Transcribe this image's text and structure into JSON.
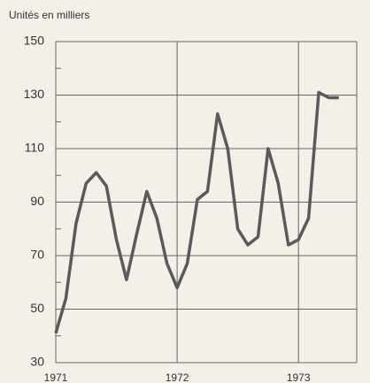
{
  "chart_data": {
    "type": "line",
    "ylabel": "Unités en milliers",
    "x": [
      1971,
      1971.083,
      1971.167,
      1971.25,
      1971.333,
      1971.417,
      1971.5,
      1971.583,
      1971.667,
      1971.75,
      1971.833,
      1971.917,
      1972,
      1972.083,
      1972.167,
      1972.25,
      1972.333,
      1972.417,
      1972.5,
      1972.583,
      1972.667,
      1972.75,
      1972.833,
      1972.917,
      1973,
      1973.083,
      1973.167,
      1973.25,
      1973.333
    ],
    "series": [
      {
        "color": "#5a5a5a",
        "values": [
          41,
          54,
          82,
          97,
          101,
          96,
          76,
          61,
          78,
          94,
          84,
          67,
          58,
          67,
          91,
          94,
          123,
          110,
          80,
          74,
          77,
          110,
          97,
          74,
          76,
          84,
          131,
          129,
          129
        ]
      }
    ],
    "xlim": [
      1971,
      1973.48
    ],
    "xticks": [
      1971,
      1972,
      1973
    ],
    "ylim": [
      30,
      150
    ],
    "yticks": [
      30,
      50,
      70,
      90,
      110,
      130,
      150
    ],
    "yminorticks": [
      40,
      60,
      80,
      100,
      120,
      140
    ],
    "grid": true
  }
}
